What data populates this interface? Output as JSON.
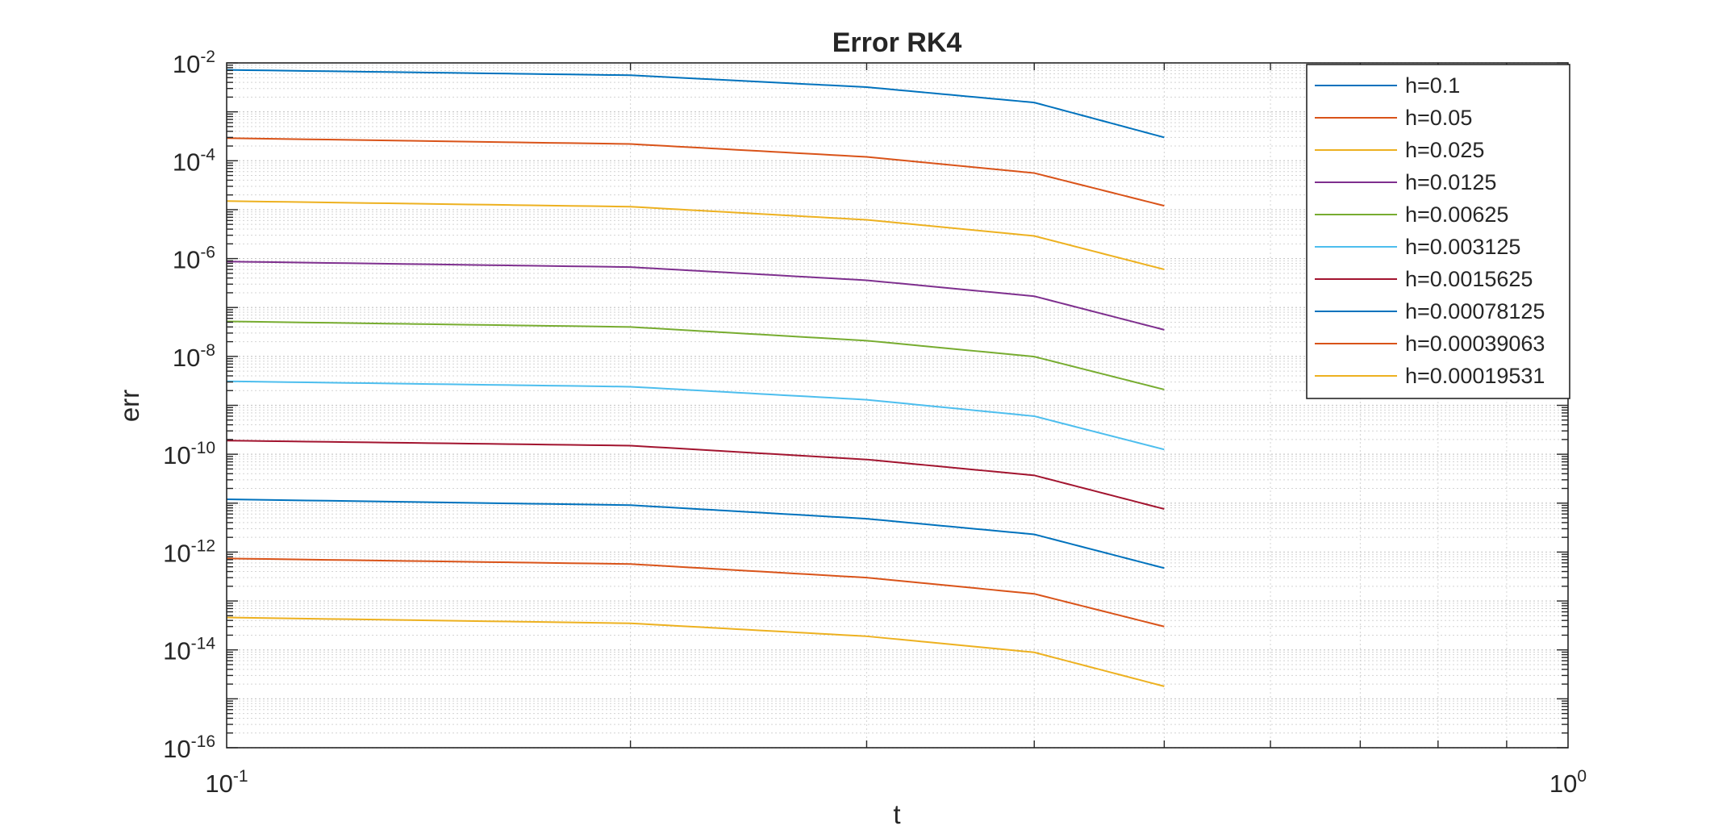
{
  "chart_data": {
    "type": "line",
    "title": "Error RK4",
    "xlabel": "t",
    "ylabel": "err",
    "xscale": "log",
    "yscale": "log",
    "xlim": [
      0.1,
      1.0
    ],
    "ylim": [
      1e-16,
      0.01
    ],
    "grid": true,
    "minor_grid": true,
    "legend_position": "top-right",
    "x_ticks": [
      {
        "base": "10",
        "exp": "-1"
      },
      {
        "base": "10",
        "exp": "0"
      }
    ],
    "y_ticks": [
      {
        "base": "10",
        "exp": "-2"
      },
      {
        "base": "10",
        "exp": "-4"
      },
      {
        "base": "10",
        "exp": "-6"
      },
      {
        "base": "10",
        "exp": "-8"
      },
      {
        "base": "10",
        "exp": "-10"
      },
      {
        "base": "10",
        "exp": "-12"
      },
      {
        "base": "10",
        "exp": "-14"
      },
      {
        "base": "10",
        "exp": "-16"
      }
    ],
    "x": [
      0.1,
      0.2,
      0.3,
      0.4,
      0.5
    ],
    "series": [
      {
        "name": "h=0.1",
        "color": "#0072BD",
        "values": [
          0.0072,
          0.0056,
          0.0032,
          0.00155,
          0.0003
        ]
      },
      {
        "name": "h=0.05",
        "color": "#D95319",
        "values": [
          0.00029,
          0.00022,
          0.00012,
          5.6e-05,
          1.2e-05
        ]
      },
      {
        "name": "h=0.025",
        "color": "#EDB120",
        "values": [
          1.5e-05,
          1.15e-05,
          6.2e-06,
          2.9e-06,
          6e-07
        ]
      },
      {
        "name": "h=0.0125",
        "color": "#7E2F8E",
        "values": [
          8.7e-07,
          6.7e-07,
          3.6e-07,
          1.7e-07,
          3.5e-08
        ]
      },
      {
        "name": "h=0.00625",
        "color": "#77AC30",
        "values": [
          5.2e-08,
          4e-08,
          2.1e-08,
          9.9e-09,
          2.1e-09
        ]
      },
      {
        "name": "h=0.003125",
        "color": "#4DBEEE",
        "values": [
          3.1e-09,
          2.4e-09,
          1.3e-09,
          6e-10,
          1.25e-10
        ]
      },
      {
        "name": "h=0.0015625",
        "color": "#A2142F",
        "values": [
          1.9e-10,
          1.5e-10,
          7.8e-11,
          3.7e-11,
          7.6e-12
        ]
      },
      {
        "name": "h=0.00078125",
        "color": "#0072BD",
        "values": [
          1.2e-11,
          9.1e-12,
          4.8e-12,
          2.3e-12,
          4.7e-13
        ]
      },
      {
        "name": "h=0.00039063",
        "color": "#D95319",
        "values": [
          7.4e-13,
          5.7e-13,
          3e-13,
          1.4e-13,
          3e-14
        ]
      },
      {
        "name": "h=0.00019531",
        "color": "#EDB120",
        "values": [
          4.6e-14,
          3.5e-14,
          1.9e-14,
          8.9e-15,
          1.8e-15
        ]
      }
    ]
  }
}
